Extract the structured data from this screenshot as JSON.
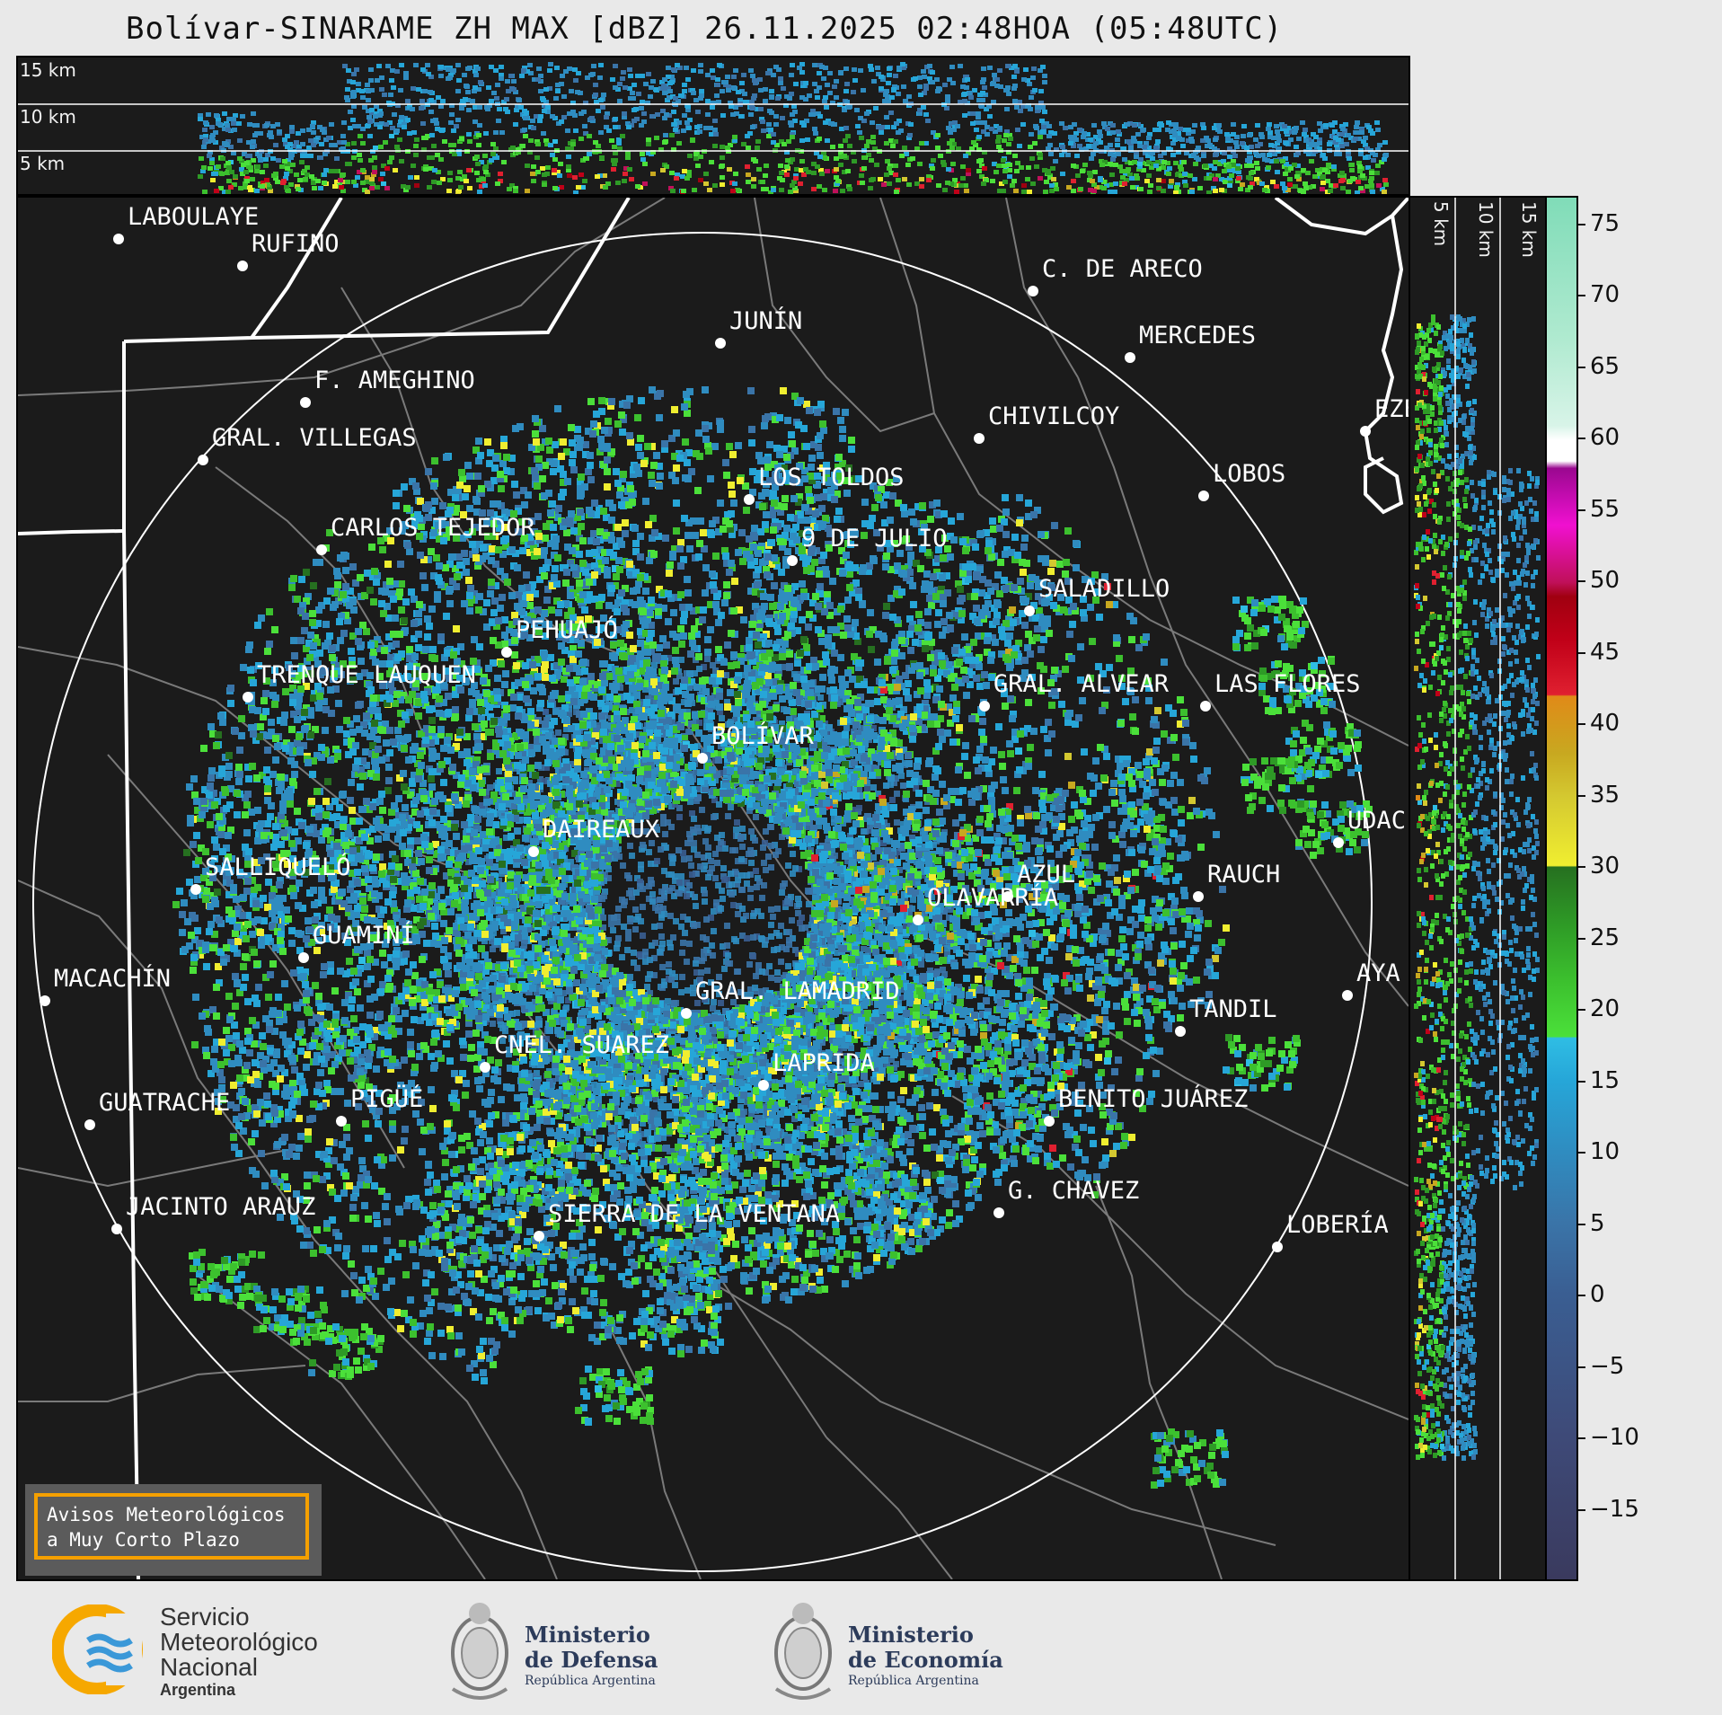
{
  "title": "Bolívar-SINARAME ZH MAX [dBZ] 26.11.2025 02:48HOA (05:48UTC)",
  "top_panel": {
    "height_labels": [
      "15 km",
      "10 km",
      "5 km"
    ]
  },
  "right_panel": {
    "height_labels": [
      "5 km",
      "10 km",
      "15 km"
    ]
  },
  "cities": [
    {
      "name": "LABOULAYE"
    },
    {
      "name": "RUFINO"
    },
    {
      "name": "C. DE ARECO"
    },
    {
      "name": "JUNÍN"
    },
    {
      "name": "MERCEDES"
    },
    {
      "name": "F. AMEGHINO"
    },
    {
      "name": "CHIVILCOY"
    },
    {
      "name": "EZE"
    },
    {
      "name": "GRAL. VILLEGAS"
    },
    {
      "name": "LOS TOLDOS"
    },
    {
      "name": "LOBOS"
    },
    {
      "name": "CARLOS TEJEDOR"
    },
    {
      "name": "9 DE JULIO"
    },
    {
      "name": "SALADILLO"
    },
    {
      "name": "PEHUAJÓ"
    },
    {
      "name": "TRENQUE LAUQUEN"
    },
    {
      "name": "GRAL. ALVEAR"
    },
    {
      "name": "LAS FLORES"
    },
    {
      "name": "BOLÍVAR"
    },
    {
      "name": "DAIREAUX"
    },
    {
      "name": "UDAC"
    },
    {
      "name": "SALLIQUELÓ"
    },
    {
      "name": "AZUL"
    },
    {
      "name": "RAUCH"
    },
    {
      "name": "OLAVARRÍA"
    },
    {
      "name": "GUAMINÍ"
    },
    {
      "name": "MACACHÍN"
    },
    {
      "name": "AYA"
    },
    {
      "name": "GRAL. LAMADRID"
    },
    {
      "name": "TANDIL"
    },
    {
      "name": "CNEL. SUAREZ"
    },
    {
      "name": "LAPRIDA"
    },
    {
      "name": "PIGÜÉ"
    },
    {
      "name": "GUATRACHE"
    },
    {
      "name": "BENITO JUÁREZ"
    },
    {
      "name": "G. CHAVEZ"
    },
    {
      "name": "JACINTO ARAUZ"
    },
    {
      "name": "SIERRA DE LA VENTANA"
    },
    {
      "name": "LOBERÍA"
    }
  ],
  "colorbar": {
    "unit": "dBZ",
    "ticks": [
      75,
      70,
      65,
      60,
      55,
      50,
      45,
      40,
      35,
      30,
      25,
      20,
      15,
      10,
      5,
      0,
      -5,
      -10,
      -15
    ],
    "tick_labels": [
      "75",
      "70",
      "65",
      "60",
      "55",
      "50",
      "45",
      "40",
      "35",
      "30",
      "25",
      "20",
      "15",
      "10",
      "5",
      "0",
      "−5",
      "−10",
      "−15"
    ],
    "range": [
      -20,
      77
    ],
    "stops": [
      {
        "v": -20,
        "c": "#3a3a5e"
      },
      {
        "v": -10,
        "c": "#3e4a78"
      },
      {
        "v": 0,
        "c": "#3a5e92"
      },
      {
        "v": 5,
        "c": "#3a74a8"
      },
      {
        "v": 10,
        "c": "#2f8cc0"
      },
      {
        "v": 15,
        "c": "#26a6d8"
      },
      {
        "v": 18,
        "c": "#2fbde4"
      },
      {
        "v": 18.1,
        "c": "#4be03a"
      },
      {
        "v": 22,
        "c": "#3cc02e"
      },
      {
        "v": 26,
        "c": "#2e9a26"
      },
      {
        "v": 30,
        "c": "#267020"
      },
      {
        "v": 30.1,
        "c": "#f0ee30"
      },
      {
        "v": 35,
        "c": "#d4c830"
      },
      {
        "v": 38,
        "c": "#c8a820"
      },
      {
        "v": 42,
        "c": "#e08a18"
      },
      {
        "v": 42.1,
        "c": "#e02030"
      },
      {
        "v": 46,
        "c": "#c00018"
      },
      {
        "v": 49,
        "c": "#a00010"
      },
      {
        "v": 50,
        "c": "#c0105a"
      },
      {
        "v": 54,
        "c": "#f010d0"
      },
      {
        "v": 58,
        "c": "#9a0890"
      },
      {
        "v": 58.5,
        "c": "#ffffff"
      },
      {
        "v": 60,
        "c": "#ffffff"
      },
      {
        "v": 61,
        "c": "#d8f4e8"
      },
      {
        "v": 67,
        "c": "#b0ead0"
      },
      {
        "v": 77,
        "c": "#80dcb8"
      }
    ]
  },
  "warning_box": {
    "line1": "Avisos Meteorológicos",
    "line2": "a Muy Corto Plazo"
  },
  "logos": {
    "smn_line1": "Servicio",
    "smn_line2": "Meteorológico",
    "smn_line3": "Nacional",
    "smn_line4": "Argentina",
    "defensa_line1": "Ministerio",
    "defensa_line2": "de Defensa",
    "defensa_line3": "República Argentina",
    "economia_line1": "Ministerio",
    "economia_line2": "de Economía",
    "economia_line3": "República Argentina"
  }
}
